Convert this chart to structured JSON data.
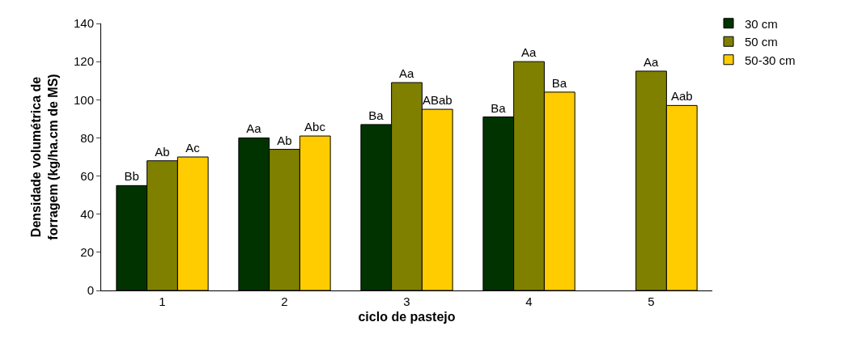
{
  "chart_data": {
    "type": "bar",
    "xlabel": "ciclo de pastejo",
    "ylabel": "Densidade volumétrica de\nforragem (kg/ha.cm de MS)",
    "categories": [
      "1",
      "2",
      "3",
      "4",
      "5"
    ],
    "series": [
      {
        "name": "30 cm",
        "color": "#003300",
        "values": [
          55,
          80,
          87,
          91,
          null
        ],
        "value_labels": [
          "Bb",
          "Aa",
          "Ba",
          "Ba",
          null
        ]
      },
      {
        "name": "50 cm",
        "color": "#808000",
        "values": [
          68,
          74,
          109,
          120,
          115
        ],
        "value_labels": [
          "Ab",
          "Ab",
          "Aa",
          "Aa",
          "Aa"
        ]
      },
      {
        "name": "50-30 cm",
        "color": "#ffcc00",
        "values": [
          70,
          81,
          95,
          104,
          97
        ],
        "value_labels": [
          "Ac",
          "Abc",
          "ABab",
          "Ba",
          "Aab"
        ]
      }
    ],
    "ylim": [
      0,
      140
    ],
    "yticks": [
      0,
      20,
      40,
      60,
      80,
      100,
      120,
      140
    ],
    "legend": "top right"
  }
}
